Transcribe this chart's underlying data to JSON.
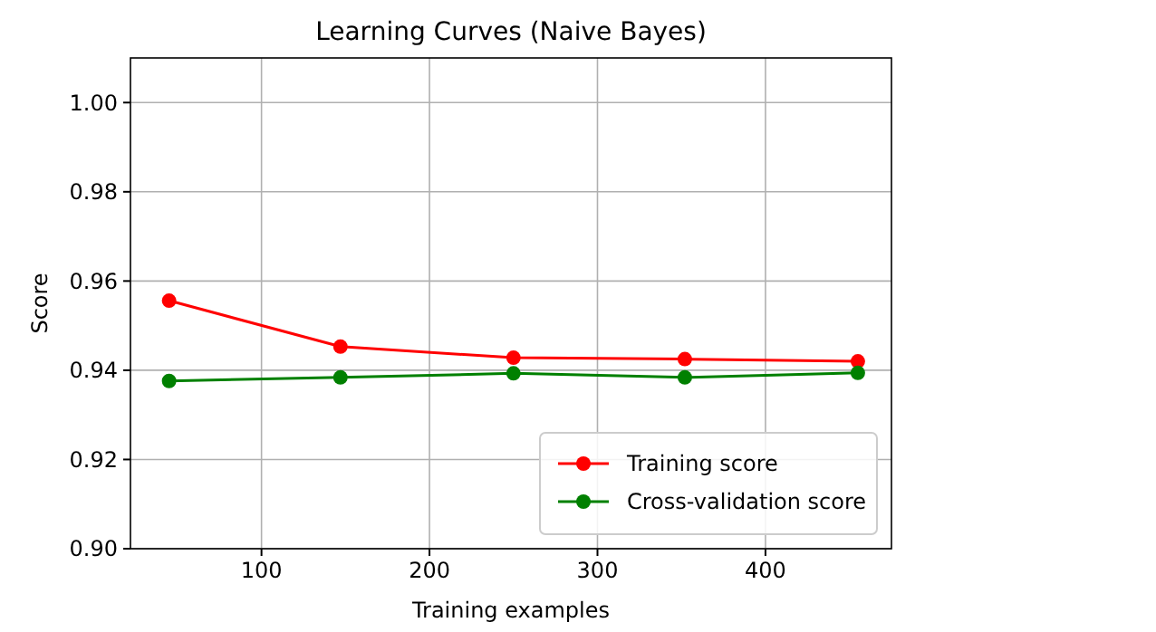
{
  "chart_data": {
    "type": "line",
    "title": "Learning Curves (Naive Bayes)",
    "xlabel": "Training examples",
    "ylabel": "Score",
    "x": [
      45,
      147,
      250,
      352,
      455
    ],
    "series": [
      {
        "name": "Training score",
        "color": "#ff0000",
        "values": [
          0.9556,
          0.9453,
          0.9428,
          0.9425,
          0.942
        ]
      },
      {
        "name": "Cross-validation score",
        "color": "#008000",
        "values": [
          0.9376,
          0.9384,
          0.9393,
          0.9384,
          0.9394
        ]
      }
    ],
    "xlim": [
      22,
      475
    ],
    "xticks": [
      100,
      200,
      300,
      400
    ],
    "ylim": [
      0.9,
      1.01
    ],
    "yticks": [
      {
        "value": 0.9,
        "label": "0.90"
      },
      {
        "value": 0.92,
        "label": "0.92"
      },
      {
        "value": 0.94,
        "label": "0.94"
      },
      {
        "value": 0.96,
        "label": "0.96"
      },
      {
        "value": 0.98,
        "label": "0.98"
      },
      {
        "value": 1.0,
        "label": "1.00"
      }
    ],
    "grid": true,
    "legend": "bottom right",
    "marker": "circle",
    "line_style": "solid"
  }
}
